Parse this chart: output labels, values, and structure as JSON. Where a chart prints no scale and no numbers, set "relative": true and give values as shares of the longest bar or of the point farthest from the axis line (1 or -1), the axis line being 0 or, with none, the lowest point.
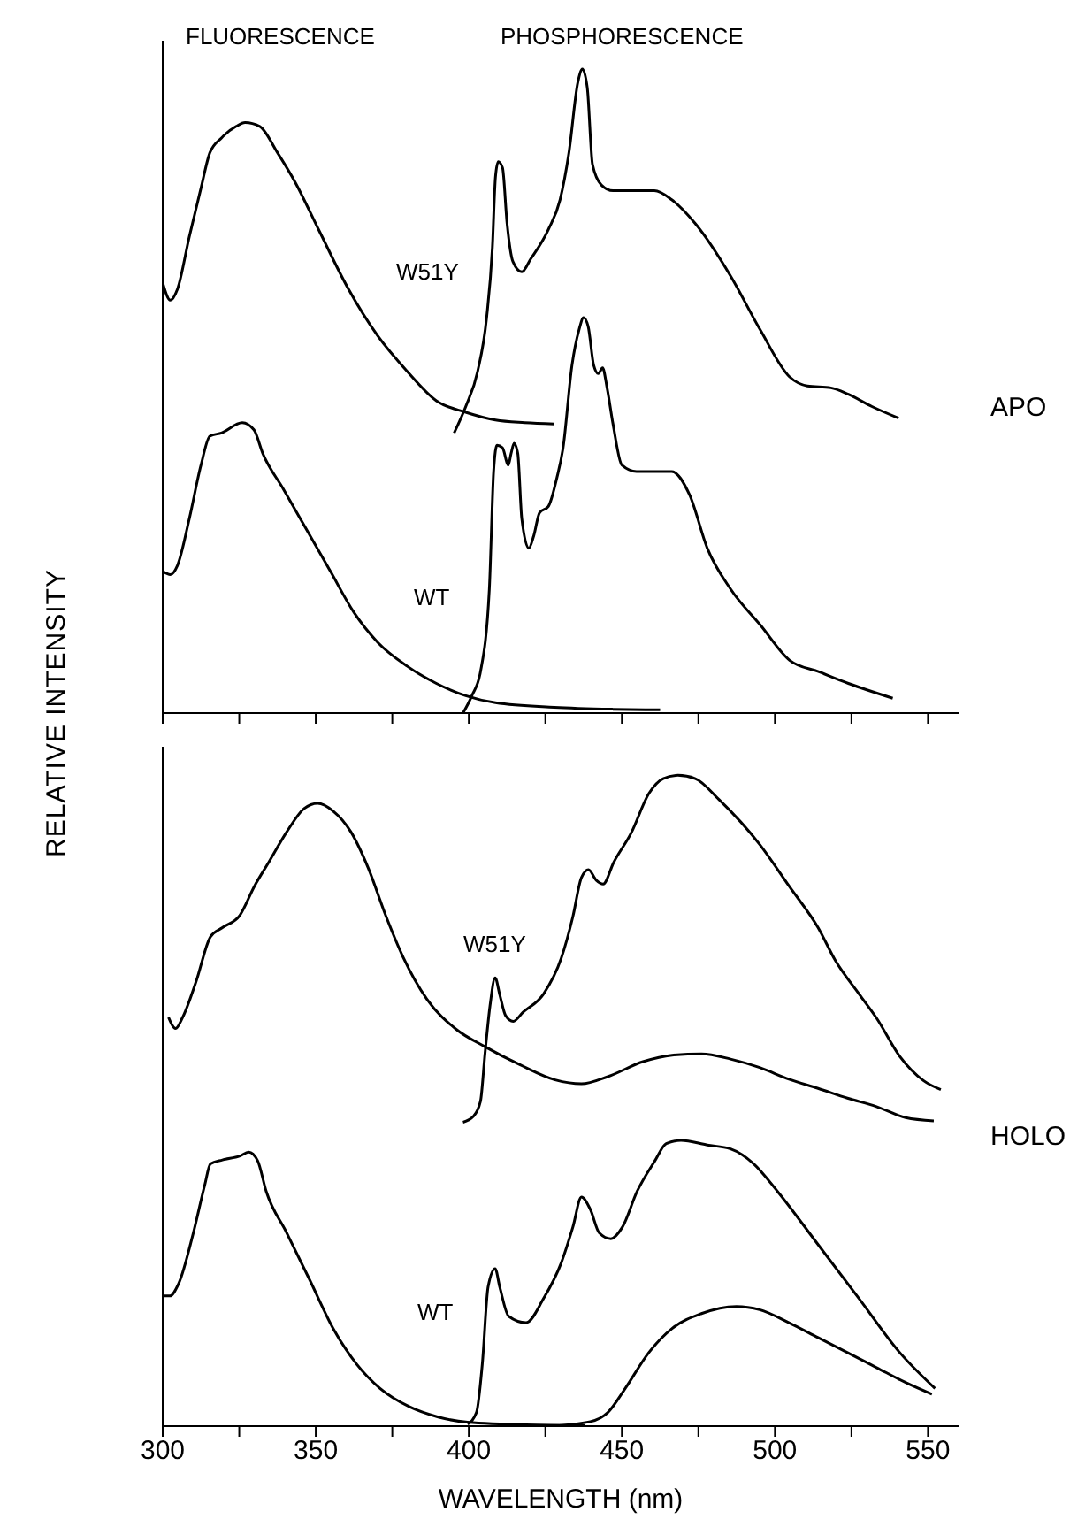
{
  "chart_data": [
    {
      "type": "line",
      "relative": true,
      "ylabel": "RELATIVE INTENSITY",
      "xlim": [
        300,
        560
      ],
      "xticks": [
        300,
        {
          "value": 325,
          "label": null
        },
        350,
        {
          "value": 375,
          "label": null
        },
        400,
        {
          "value": 425,
          "label": null
        },
        450,
        {
          "value": 475,
          "label": null
        },
        500,
        {
          "value": 525,
          "label": null
        },
        550
      ],
      "tick_labels": false,
      "annotations": [
        "FLUORESCENCE",
        "PHOSPHORESCENCE",
        "APO",
        "W51Y",
        "WT"
      ],
      "series": [
        {
          "color": "#000000",
          "x": [
            300,
            302.5,
            304.8,
            308.7,
            312.5,
            315.4,
            319.2,
            324,
            326.9,
            331.7,
            337.5,
            343.3,
            351,
            360.6,
            370.2,
            379.8,
            389.4,
            399,
            408.7,
            418.3,
            427.9
          ],
          "values": [
            0.668,
            0.641,
            0.658,
            0.74,
            0.815,
            0.87,
            0.893,
            0.911,
            0.917,
            0.911,
            0.87,
            0.824,
            0.75,
            0.659,
            0.586,
            0.531,
            0.485,
            0.467,
            0.455,
            0.451,
            0.449
          ]
        },
        {
          "color": "#000000",
          "x": [
            395.2,
            399,
            402.9,
            405.8,
            407.7,
            408.7,
            409.6,
            411,
            412.5,
            414.4,
            417.3,
            420.2,
            426,
            429.8,
            432.7,
            435.6,
            437.1,
            438.7,
            440.4,
            443.3,
            447.1,
            460.6,
            466.3,
            474,
            485.6,
            495.2,
            504.8,
            510.6,
            518.3,
            524,
            531.7,
            540.4
          ],
          "values": [
            0.435,
            0.476,
            0.531,
            0.613,
            0.723,
            0.832,
            0.856,
            0.847,
            0.76,
            0.701,
            0.685,
            0.705,
            0.751,
            0.797,
            0.87,
            0.979,
            1.0,
            0.971,
            0.852,
            0.82,
            0.811,
            0.811,
            0.797,
            0.76,
            0.678,
            0.595,
            0.522,
            0.508,
            0.505,
            0.495,
            0.476,
            0.458
          ]
        },
        {
          "color": "#000000",
          "x": [
            300,
            302.5,
            304.8,
            308.7,
            312.5,
            315.4,
            319.2,
            326,
            329.8,
            332.7,
            339.4,
            347.1,
            354.8,
            362.5,
            370.2,
            379.8,
            389.4,
            399,
            408.7,
            427.9,
            447.1,
            462.5
          ],
          "values": [
            0.22,
            0.215,
            0.229,
            0.302,
            0.385,
            0.43,
            0.435,
            0.451,
            0.44,
            0.403,
            0.348,
            0.284,
            0.22,
            0.156,
            0.11,
            0.073,
            0.046,
            0.027,
            0.016,
            0.009,
            0.006,
            0.005
          ]
        },
        {
          "color": "#000000",
          "x": [
            398.1,
            401,
            403.8,
            406.7,
            408.1,
            409.2,
            411,
            412.9,
            413.8,
            414.8,
            416,
            417.3,
            419.6,
            421.2,
            423.1,
            426,
            428.8,
            430.8,
            433.7,
            436,
            437.5,
            439,
            440.8,
            442.3,
            443.7,
            445.2,
            447.1,
            450,
            454.8,
            466.3,
            472.1,
            477.9,
            485.6,
            495.2,
            504.8,
            514.4,
            524,
            538.5
          ],
          "values": [
            0,
            0.027,
            0.064,
            0.192,
            0.375,
            0.416,
            0.412,
            0.385,
            0.403,
            0.419,
            0.403,
            0.302,
            0.256,
            0.275,
            0.311,
            0.321,
            0.366,
            0.412,
            0.54,
            0.595,
            0.614,
            0.6,
            0.54,
            0.527,
            0.536,
            0.504,
            0.449,
            0.385,
            0.375,
            0.375,
            0.339,
            0.256,
            0.192,
            0.137,
            0.082,
            0.064,
            0.046,
            0.023
          ]
        }
      ]
    },
    {
      "type": "line",
      "relative": true,
      "xlabel": "WAVELENGTH (nm)",
      "xlim": [
        300,
        560
      ],
      "xticks": [
        300,
        {
          "value": 325,
          "label": null
        },
        350,
        {
          "value": 375,
          "label": null
        },
        400,
        {
          "value": 425,
          "label": null
        },
        450,
        {
          "value": 475,
          "label": null
        },
        500,
        {
          "value": 525,
          "label": null
        },
        550
      ],
      "tick_labels": "x",
      "annotations": [
        "HOLO",
        "W51Y",
        "WT"
      ],
      "series": [
        {
          "color": "#000000",
          "x": [
            301.9,
            304.2,
            306.5,
            310.9,
            315.6,
            319.5,
            325.2,
            330,
            334.7,
            340.5,
            346.2,
            350.6,
            355.7,
            361.5,
            367.2,
            372.9,
            378.6,
            386.3,
            395.8,
            405.3,
            416.8,
            428.2,
            436.8,
            445.4,
            456.9,
            466.4,
            476,
            485.5,
            495,
            504.6,
            514.1,
            523.7,
            533.2,
            542.7,
            551.9
          ],
          "values": [
            0.628,
            0.611,
            0.628,
            0.683,
            0.752,
            0.766,
            0.785,
            0.83,
            0.867,
            0.913,
            0.949,
            0.957,
            0.945,
            0.913,
            0.857,
            0.784,
            0.72,
            0.656,
            0.61,
            0.583,
            0.555,
            0.532,
            0.526,
            0.537,
            0.56,
            0.57,
            0.572,
            0.564,
            0.551,
            0.533,
            0.519,
            0.504,
            0.491,
            0.474,
            0.469
          ]
        },
        {
          "color": "#000000",
          "x": [
            398.1,
            401.5,
            403.8,
            405.3,
            406.9,
            408.6,
            410.1,
            412,
            414.5,
            417.7,
            424.4,
            430.2,
            434,
            436.8,
            439.1,
            441.6,
            443.9,
            447.3,
            453.1,
            458.8,
            463.5,
            468.3,
            474,
            481.7,
            495,
            504.6,
            514.1,
            519.8,
            527.5,
            533.2,
            540.8,
            548.5,
            554.2
          ],
          "values": [
            0.467,
            0.476,
            0.499,
            0.573,
            0.645,
            0.689,
            0.663,
            0.631,
            0.622,
            0.636,
            0.664,
            0.719,
            0.783,
            0.843,
            0.855,
            0.839,
            0.833,
            0.866,
            0.912,
            0.972,
            0.995,
            1.0,
            0.995,
            0.963,
            0.894,
            0.83,
            0.766,
            0.715,
            0.664,
            0.627,
            0.568,
            0.531,
            0.517
          ]
        },
        {
          "color": "#000000",
          "x": [
            300.4,
            302.3,
            305.2,
            310,
            313.7,
            315.6,
            319.5,
            325.2,
            328.1,
            331,
            333.8,
            340.5,
            348.1,
            355.7,
            363.4,
            371,
            380.5,
            390,
            399.6,
            418.7,
            437.8
          ],
          "values": [
            0.2,
            0.2,
            0.219,
            0.297,
            0.37,
            0.403,
            0.409,
            0.415,
            0.421,
            0.408,
            0.361,
            0.297,
            0.224,
            0.15,
            0.095,
            0.058,
            0.03,
            0.014,
            0.006,
            0.002,
            0.001
          ]
        },
        {
          "color": "#000000",
          "x": [
            399.6,
            402.5,
            404.4,
            406.3,
            408.6,
            410.1,
            413,
            418.7,
            424.4,
            430.2,
            434,
            436.8,
            439.7,
            442.6,
            446.4,
            450.2,
            455,
            460.7,
            464.5,
            469.3,
            477.9,
            485.5,
            493.1,
            500.8,
            514.1,
            527.5,
            540.8,
            552.3
          ],
          "values": [
            0.003,
            0.021,
            0.095,
            0.214,
            0.242,
            0.214,
            0.169,
            0.159,
            0.196,
            0.251,
            0.306,
            0.352,
            0.333,
            0.297,
            0.288,
            0.306,
            0.361,
            0.407,
            0.434,
            0.439,
            0.432,
            0.426,
            0.403,
            0.361,
            0.279,
            0.196,
            0.113,
            0.058
          ]
        },
        {
          "color": "#000000",
          "x": [
            426.3,
            439.7,
            445.4,
            451.1,
            458.8,
            466.4,
            476,
            487.4,
            495,
            504.6,
            514.1,
            523.7,
            533.2,
            542.7,
            551.3
          ],
          "values": [
            0,
            0.007,
            0.021,
            0.058,
            0.113,
            0.15,
            0.173,
            0.184,
            0.179,
            0.159,
            0.136,
            0.113,
            0.09,
            0.067,
            0.049
          ]
        }
      ]
    }
  ]
}
